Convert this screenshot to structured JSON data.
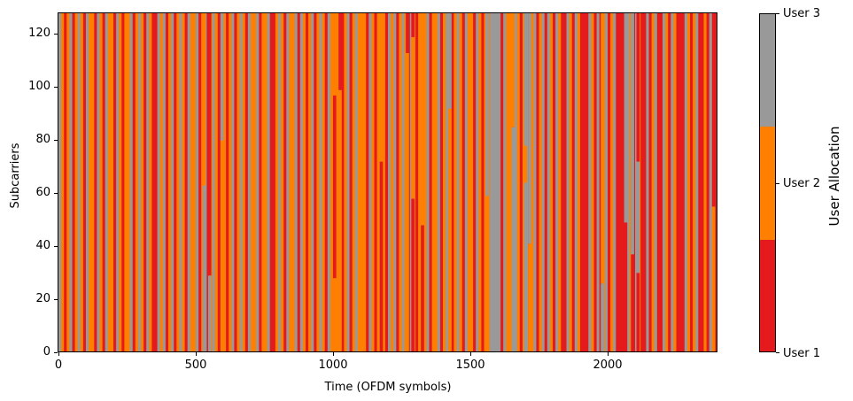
{
  "chart_data": {
    "type": "heatmap",
    "title": "",
    "xlabel": "Time (OFDM symbols)",
    "ylabel": "Subcarriers",
    "xlim": [
      0,
      2400
    ],
    "ylim": [
      0,
      128
    ],
    "x_ticks": [
      0,
      500,
      1000,
      1500,
      2000
    ],
    "y_ticks": [
      0,
      20,
      40,
      60,
      80,
      100,
      120
    ],
    "grid": false,
    "colorbar": {
      "label": "User Allocation",
      "ticks": [
        "User 1",
        "User 2",
        "User 3"
      ],
      "colors": {
        "User 1": "#e41a1c",
        "User 2": "#ff7f00",
        "User 3": "#999999"
      }
    },
    "description": "Each time column (~10 OFDM symbols wide) is mostly allocated to one user across all 128 subcarriers; some columns switch user at a subcarrier boundary.",
    "column_width_symbols": 10,
    "pattern_seed": [
      2,
      1,
      0,
      1,
      2,
      0,
      1,
      2,
      1,
      0,
      2,
      1,
      1,
      0,
      2,
      1,
      0,
      2,
      1,
      1,
      0,
      2,
      1,
      0,
      1,
      1,
      2,
      0,
      1,
      2,
      1,
      0,
      2,
      1,
      0,
      0,
      2,
      1,
      2,
      0,
      1,
      2,
      0,
      1,
      2,
      1,
      0,
      2,
      1,
      1,
      2,
      0,
      1,
      2,
      0,
      1,
      2,
      1,
      0,
      2,
      1,
      0,
      1,
      2,
      0,
      1,
      2,
      1,
      0,
      2,
      1,
      1,
      2,
      0,
      1,
      1,
      2,
      0,
      0,
      1,
      2,
      1,
      0,
      2,
      1,
      1,
      2,
      0,
      2,
      1,
      0,
      1,
      2,
      0,
      1,
      2,
      1,
      0,
      2,
      1,
      1,
      1,
      2,
      0,
      1,
      2,
      0,
      1,
      2,
      1,
      1,
      1,
      0,
      2,
      1,
      0,
      1,
      2,
      1,
      0,
      2,
      1,
      2,
      0,
      1,
      2,
      1,
      0,
      2,
      1,
      0,
      1,
      2,
      1,
      2,
      0,
      1,
      1,
      2,
      0,
      1,
      2,
      1,
      0,
      1,
      2,
      1,
      0,
      2,
      1,
      1,
      0,
      2,
      1,
      0,
      1,
      1,
      2,
      2,
      2,
      2,
      0,
      2,
      1,
      1,
      0,
      2,
      1,
      0,
      1,
      2,
      0,
      1,
      2,
      0,
      1,
      2,
      0,
      2,
      1,
      0,
      2,
      1,
      0,
      0,
      2,
      1,
      0,
      2,
      1,
      0,
      0,
      0,
      2,
      1,
      0,
      2,
      0,
      1,
      2,
      0,
      1,
      2,
      0,
      0,
      0,
      0,
      2,
      1,
      0,
      2,
      1,
      0,
      0,
      2,
      0,
      1,
      2,
      0,
      0,
      2,
      1,
      0,
      2,
      1,
      0,
      0,
      0,
      2,
      1,
      0,
      1,
      2,
      0,
      0,
      1,
      0,
      2,
      1,
      0
    ],
    "partial_columns": [
      {
        "x": 525,
        "bottom_user": 3,
        "top_user": 2,
        "split_subcarrier": 63
      },
      {
        "x": 545,
        "bottom_user": 3,
        "top_user": 1,
        "split_subcarrier": 29
      },
      {
        "x": 590,
        "bottom_user": 2,
        "top_user": 3,
        "split_subcarrier": 80
      },
      {
        "x": 1000,
        "bottom_user": 2,
        "top_user": 1,
        "split_subcarrier": 28,
        "upper_split": 97
      },
      {
        "x": 1020,
        "bottom_user": 2,
        "top_user": 1,
        "split_subcarrier": 99
      },
      {
        "x": 1170,
        "bottom_user": 1,
        "top_user": 2,
        "split_subcarrier": 72
      },
      {
        "x": 1265,
        "bottom_user": 2,
        "top_user": 1,
        "split_subcarrier": 113
      },
      {
        "x": 1285,
        "bottom_user": 1,
        "top_user": 2,
        "split_subcarrier": 58,
        "upper_split": 119
      },
      {
        "x": 1320,
        "bottom_user": 1,
        "top_user": 2,
        "split_subcarrier": 48
      },
      {
        "x": 1420,
        "bottom_user": 2,
        "top_user": 3,
        "split_subcarrier": 92
      },
      {
        "x": 1555,
        "bottom_user": 2,
        "top_user": 3,
        "split_subcarrier": 59
      },
      {
        "x": 1650,
        "bottom_user": 3,
        "top_user": 2,
        "split_subcarrier": 85
      },
      {
        "x": 1695,
        "bottom_user": 3,
        "top_user": 2,
        "split_subcarrier": 64,
        "upper_split": 78
      },
      {
        "x": 1710,
        "bottom_user": 2,
        "top_user": 3,
        "split_subcarrier": 41
      },
      {
        "x": 1975,
        "bottom_user": 3,
        "top_user": 2,
        "split_subcarrier": 26
      },
      {
        "x": 2060,
        "bottom_user": 1,
        "top_user": 3,
        "split_subcarrier": 49
      },
      {
        "x": 2085,
        "bottom_user": 1,
        "top_user": 3,
        "split_subcarrier": 37
      },
      {
        "x": 2105,
        "bottom_user": 1,
        "top_user": 3,
        "split_subcarrier": 30,
        "upper_split": 72
      },
      {
        "x": 2380,
        "bottom_user": 2,
        "top_user": 1,
        "split_subcarrier": 55
      }
    ]
  },
  "axes": {
    "xlabel": "Time (OFDM symbols)",
    "ylabel": "Subcarriers",
    "x_ticks": [
      "0",
      "500",
      "1000",
      "1500",
      "2000"
    ],
    "y_ticks": [
      "0",
      "20",
      "40",
      "60",
      "80",
      "100",
      "120"
    ]
  },
  "colorbar": {
    "title": "User Allocation",
    "labels": [
      "User 1",
      "User 2",
      "User 3"
    ]
  }
}
